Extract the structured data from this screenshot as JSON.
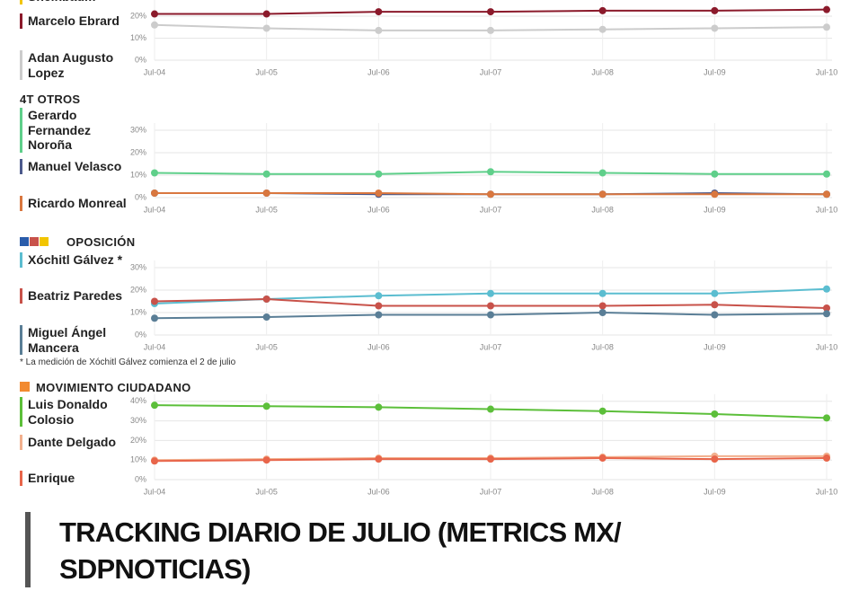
{
  "chart_data": [
    {
      "type": "line",
      "categories": [
        "Jul-04",
        "Jul-05",
        "Jul-06",
        "Jul-07",
        "Jul-08",
        "Jul-09",
        "Jul-10"
      ],
      "ylim": [
        0,
        30
      ],
      "yticks": [
        {
          "value": 0,
          "label": "0%"
        },
        {
          "value": 10,
          "label": "10%"
        },
        {
          "value": 20,
          "label": "20%"
        }
      ],
      "grid": true,
      "series": [
        {
          "name": "Sheinbaum",
          "color": "#f2c500",
          "values": [
            null,
            null,
            null,
            null,
            null,
            null,
            null
          ]
        },
        {
          "name": "Marcelo Ebrard",
          "color": "#8b1a2b",
          "values": [
            21,
            21,
            22,
            22,
            22.5,
            22.5,
            23
          ]
        },
        {
          "name": "Adan Augusto Lopez",
          "color": "#cccccc",
          "values": [
            16,
            14.5,
            13.5,
            13.5,
            14,
            14.5,
            15
          ]
        }
      ]
    },
    {
      "type": "line",
      "title": "4T OTROS",
      "categories": [
        "Jul-04",
        "Jul-05",
        "Jul-06",
        "Jul-07",
        "Jul-08",
        "Jul-09",
        "Jul-10"
      ],
      "ylim": [
        0,
        30
      ],
      "yticks": [
        {
          "value": 0,
          "label": "0%"
        },
        {
          "value": 10,
          "label": "10%"
        },
        {
          "value": 20,
          "label": "20%"
        },
        {
          "value": 30,
          "label": "30%"
        }
      ],
      "grid": true,
      "series": [
        {
          "name": "Gerardo Fernandez Noroña",
          "color": "#5fcf8a",
          "values": [
            11,
            10.5,
            10.5,
            11.5,
            11,
            10.5,
            10.5
          ]
        },
        {
          "name": "Manuel Velasco",
          "color": "#4c5a8c",
          "values": [
            2,
            2,
            1.5,
            1.5,
            1.5,
            2,
            1.5
          ]
        },
        {
          "name": "Ricardo Monreal",
          "color": "#d9773f",
          "values": [
            2,
            2,
            2,
            1.5,
            1.5,
            1.5,
            1.5
          ]
        }
      ]
    },
    {
      "type": "line",
      "title": "OPOSICIÓN",
      "note": "* La medición de Xóchitl Gálvez comienza el 2 de julio",
      "categories": [
        "Jul-04",
        "Jul-05",
        "Jul-06",
        "Jul-07",
        "Jul-08",
        "Jul-09",
        "Jul-10"
      ],
      "ylim": [
        0,
        30
      ],
      "yticks": [
        {
          "value": 0,
          "label": "0%"
        },
        {
          "value": 10,
          "label": "10%"
        },
        {
          "value": 20,
          "label": "20%"
        },
        {
          "value": 30,
          "label": "30%"
        }
      ],
      "grid": true,
      "series": [
        {
          "name": "Xóchitl Gálvez *",
          "color": "#5bbdd0",
          "values": [
            14,
            16,
            17.5,
            18.5,
            18.5,
            18.5,
            20.5
          ]
        },
        {
          "name": "Beatriz Paredes",
          "color": "#c8524a",
          "values": [
            15,
            16,
            13,
            13,
            13,
            13.5,
            12
          ]
        },
        {
          "name": "Miguel Ángel Mancera",
          "color": "#5a7e96",
          "values": [
            7.5,
            8,
            9,
            9,
            10,
            9,
            9.5
          ]
        }
      ]
    },
    {
      "type": "line",
      "title": "MOVIMIENTO CIUDADANO",
      "categories": [
        "Jul-04",
        "Jul-05",
        "Jul-06",
        "Jul-07",
        "Jul-08",
        "Jul-09",
        "Jul-10"
      ],
      "ylim": [
        0,
        40
      ],
      "yticks": [
        {
          "value": 0,
          "label": "0%"
        },
        {
          "value": 10,
          "label": "10%"
        },
        {
          "value": 20,
          "label": "20%"
        },
        {
          "value": 30,
          "label": "30%"
        },
        {
          "value": 40,
          "label": "40%"
        }
      ],
      "grid": true,
      "series": [
        {
          "name": "Luis Donaldo Colosio",
          "color": "#5cbf3a",
          "values": [
            38,
            37.5,
            37,
            36,
            35,
            33.5,
            31.5
          ]
        },
        {
          "name": "Dante Delgado",
          "color": "#f2b08e",
          "values": [
            10,
            10.5,
            11,
            11,
            11.5,
            12,
            12
          ]
        },
        {
          "name": "Enrique",
          "color": "#e8654a",
          "values": [
            9.5,
            10,
            10.5,
            10.5,
            11,
            10.5,
            11
          ]
        }
      ]
    }
  ],
  "heading": "TRACKING DIARIO DE JULIO (METRICS MX/ SDPNOTICIAS)"
}
